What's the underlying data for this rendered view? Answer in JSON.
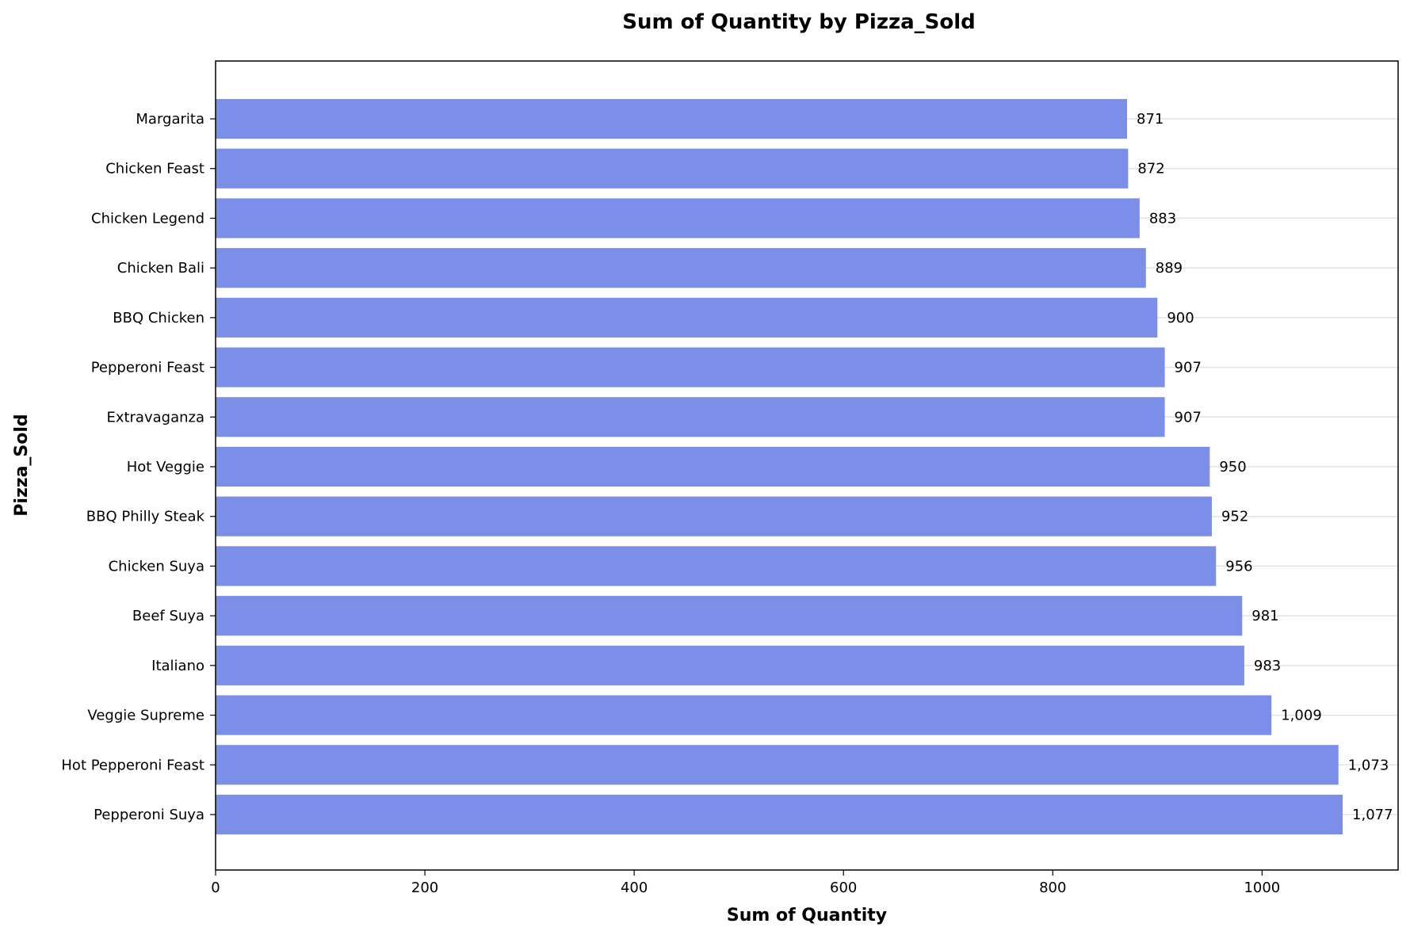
{
  "chart_data": {
    "type": "bar",
    "orientation": "horizontal",
    "title": "Sum of Quantity by Pizza_Sold",
    "xlabel": "Sum of Quantity",
    "ylabel": "Pizza_Sold",
    "xlim": [
      0,
      1130
    ],
    "x_ticks": [
      0,
      200,
      400,
      600,
      800,
      1000
    ],
    "grid": "horizontal lines",
    "bar_color": "#7b8fe9",
    "categories": [
      "Margarita",
      "Chicken Feast",
      "Chicken Legend",
      "Chicken Bali",
      "BBQ Chicken",
      "Pepperoni Feast",
      "Extravaganza",
      "Hot Veggie",
      "BBQ Philly Steak",
      "Chicken Suya",
      "Beef Suya",
      "Italiano",
      "Veggie Supreme",
      "Hot Pepperoni Feast",
      "Pepperoni Suya"
    ],
    "values": [
      871,
      872,
      883,
      889,
      900,
      907,
      907,
      950,
      952,
      956,
      981,
      983,
      1009,
      1073,
      1077
    ],
    "value_labels": [
      "871",
      "872",
      "883",
      "889",
      "900",
      "907",
      "907",
      "950",
      "952",
      "956",
      "981",
      "983",
      "1,009",
      "1,073",
      "1,077"
    ]
  }
}
